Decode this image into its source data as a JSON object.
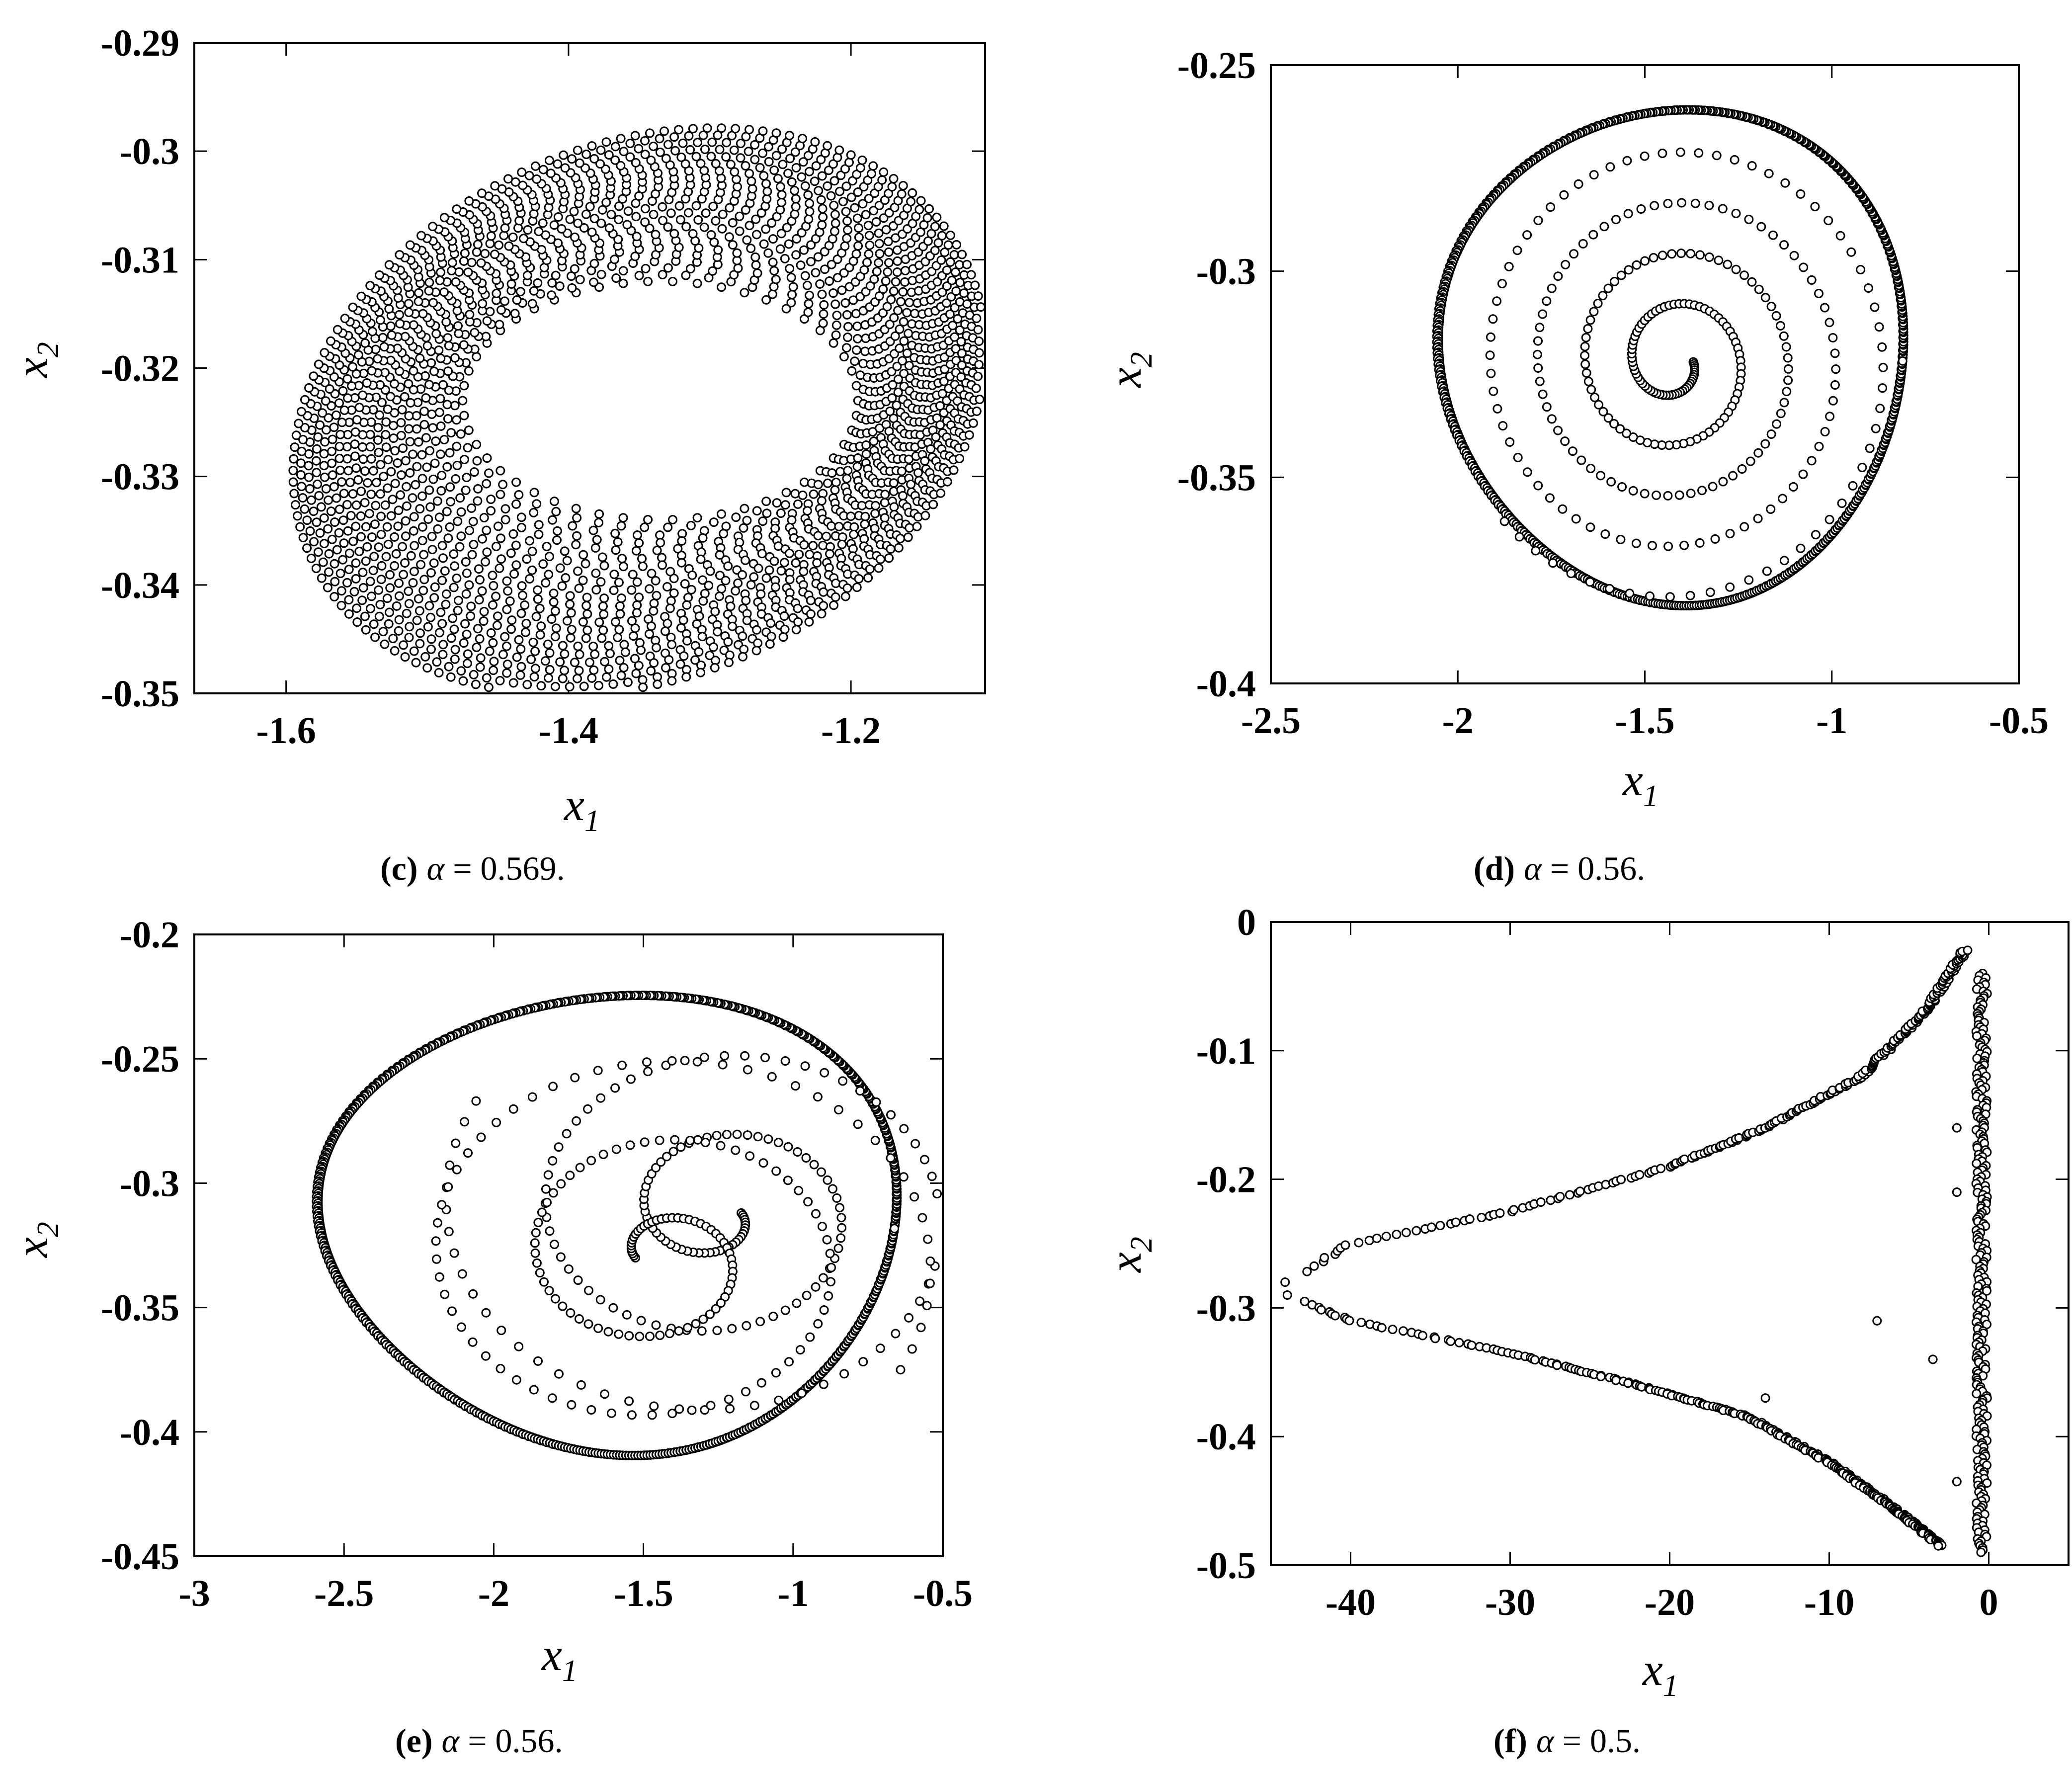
{
  "panels": [
    {
      "id": "c",
      "caption": {
        "label": "(c)",
        "symbol": "α",
        "rest": " = 0.569."
      },
      "chart_data": {
        "type": "scatter",
        "xlabel": "x",
        "xlabel_sub": "1",
        "ylabel": "x",
        "ylabel_sub": "2",
        "xlim": [
          -1.665,
          -1.105
        ],
        "ylim": [
          -0.35,
          -0.29
        ],
        "xticks": [
          -1.6,
          -1.4,
          -1.2
        ],
        "xtick_labels": [
          "-1.6",
          "-1.4",
          "-1.2"
        ],
        "yticks": [
          -0.29,
          -0.3,
          -0.31,
          -0.32,
          -0.33,
          -0.34,
          -0.35
        ],
        "ytick_labels": [
          "-0.29",
          "-0.3",
          "-0.31",
          "-0.32",
          "-0.33",
          "-0.34",
          "-0.35"
        ],
        "marker": "open-circle",
        "pattern": "torus",
        "center": [
          -1.35,
          -0.324
        ],
        "outer_rx": 0.245,
        "outer_ry": 0.0255,
        "outer_tilt": 0.0095,
        "inner_rx": 0.14,
        "inner_ry": 0.011,
        "inner_center": [
          -1.335,
          -0.323
        ]
      }
    },
    {
      "id": "d",
      "caption": {
        "label": "(d)",
        "symbol": "α",
        "rest": " = 0.56."
      },
      "chart_data": {
        "type": "scatter",
        "xlabel": "x",
        "xlabel_sub": "1",
        "ylabel": "x",
        "ylabel_sub": "2",
        "xlim": [
          -2.5,
          -0.5
        ],
        "ylim": [
          -0.4,
          -0.25
        ],
        "xticks": [
          -2.5,
          -2,
          -1.5,
          -1,
          -0.5
        ],
        "xtick_labels": [
          "-2.5",
          "-2",
          "-1.5",
          "-1",
          "-0.5"
        ],
        "yticks": [
          -0.25,
          -0.3,
          -0.35,
          -0.4
        ],
        "ytick_labels": [
          "-0.25",
          "-0.3",
          "-0.35",
          "-0.4"
        ],
        "marker": "open-circle",
        "pattern": "spiral-limit-cycle",
        "center": [
          -1.43,
          -0.321
        ],
        "cycle_rx": 0.62,
        "cycle_ry": 0.06,
        "cycle_skew": 0.2,
        "spiral_start": [
          -1.3,
          -0.314
        ],
        "spiral_end": [
          -1.54,
          -0.33
        ]
      }
    },
    {
      "id": "e",
      "caption": {
        "label": "(e)",
        "symbol": "α",
        "rest": " = 0.56."
      },
      "chart_data": {
        "type": "scatter",
        "xlabel": "x",
        "xlabel_sub": "1",
        "ylabel": "x",
        "ylabel_sub": "2",
        "xlim": [
          -3,
          -0.5
        ],
        "ylim": [
          -0.45,
          -0.2
        ],
        "xticks": [
          -3,
          -2.5,
          -2,
          -1.5,
          -1,
          -0.5
        ],
        "xtick_labels": [
          "-3",
          "-2.5",
          "-2",
          "-1.5",
          "-1",
          "-0.5"
        ],
        "yticks": [
          -0.2,
          -0.25,
          -0.3,
          -0.35,
          -0.4,
          -0.45
        ],
        "ytick_labels": [
          "-0.2",
          "-0.25",
          "-0.3",
          "-0.35",
          "-0.4",
          "-0.45"
        ],
        "marker": "open-circle",
        "pattern": "double-spiral-limit-cycle",
        "center": [
          -1.62,
          -0.317
        ],
        "cycle_rx": 0.96,
        "cycle_ry": 0.092,
        "cycle_skew": 0.3,
        "spiral_centers": [
          [
            -1.25,
            -0.312
          ],
          [
            -1.45,
            -0.33
          ]
        ]
      }
    },
    {
      "id": "f",
      "caption": {
        "label": "(f)",
        "symbol": "α",
        "rest": " = 0.5."
      },
      "chart_data": {
        "type": "scatter",
        "xlabel": "x",
        "xlabel_sub": "1",
        "ylabel": "x",
        "ylabel_sub": "2",
        "xlim": [
          -45,
          5
        ],
        "ylim": [
          -0.5,
          0
        ],
        "xticks": [
          -40,
          -30,
          -20,
          -10,
          0
        ],
        "xtick_labels": [
          "-40",
          "-30",
          "-20",
          "-10",
          "0"
        ],
        "yticks": [
          0,
          -0.1,
          -0.2,
          -0.3,
          -0.4,
          -0.5
        ],
        "ytick_labels": [
          "0",
          "-0.1",
          "-0.2",
          "-0.3",
          "-0.4",
          "-0.5"
        ],
        "marker": "open-circle",
        "pattern": "horn-shaped-attractor",
        "upper_branch": [
          [
            -44,
            -0.28
          ],
          [
            -40,
            -0.25
          ],
          [
            -30,
            -0.225
          ],
          [
            -20,
            -0.19
          ],
          [
            -14,
            -0.16
          ],
          [
            -8,
            -0.12
          ],
          [
            -4,
            -0.07
          ],
          [
            -1.5,
            -0.022
          ]
        ],
        "lower_branch": [
          [
            -44,
            -0.29
          ],
          [
            -40,
            -0.31
          ],
          [
            -30,
            -0.335
          ],
          [
            -22,
            -0.36
          ],
          [
            -15,
            -0.385
          ],
          [
            -10,
            -0.42
          ],
          [
            -6,
            -0.455
          ],
          [
            -3,
            -0.485
          ]
        ],
        "right_edge_x": [
          -0.8,
          -0.1
        ],
        "scattered_points": [
          [
            -7,
            -0.31
          ],
          [
            -2,
            -0.21
          ],
          [
            -2,
            -0.435
          ],
          [
            -3.5,
            -0.34
          ],
          [
            -14,
            -0.37
          ],
          [
            -2,
            -0.16
          ]
        ]
      }
    }
  ]
}
